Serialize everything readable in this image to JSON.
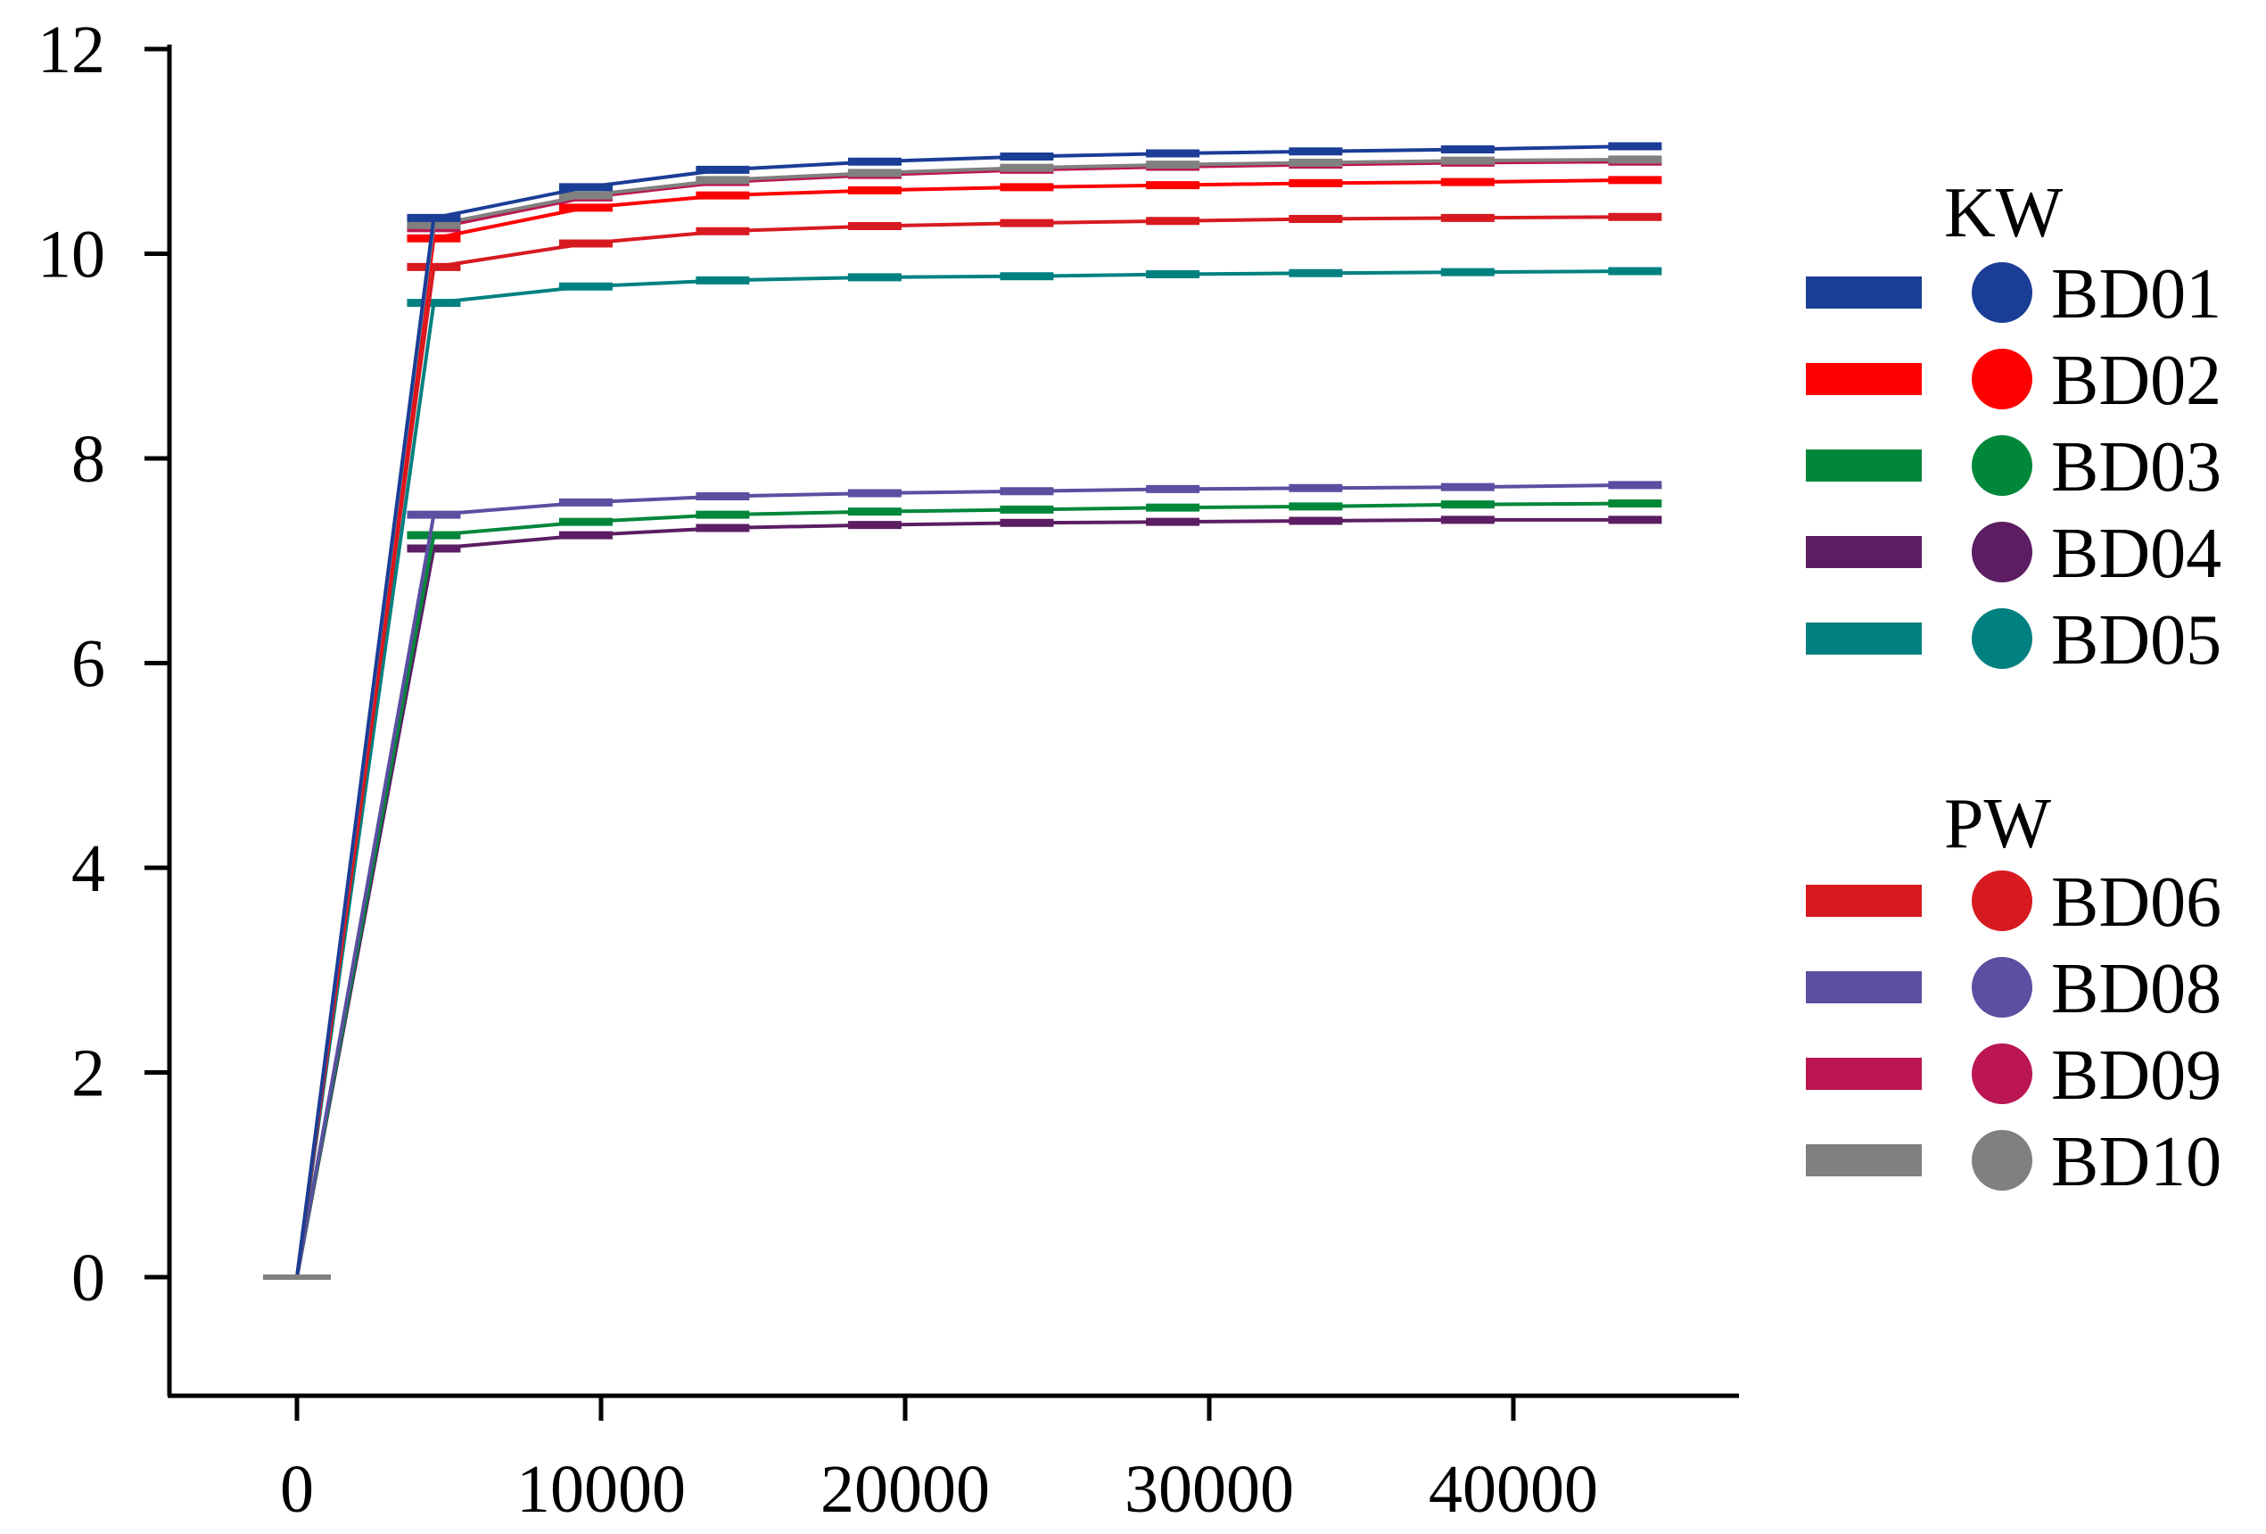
{
  "chart_data": {
    "type": "line",
    "title": "",
    "xlabel": "",
    "ylabel": "",
    "xlim": [
      -2000,
      47000
    ],
    "ylim": [
      -1.1,
      12.2
    ],
    "x_ticks": [
      0,
      10000,
      20000,
      30000,
      40000
    ],
    "x_tick_labels": [
      "0",
      "10000",
      "20000",
      "30000",
      "40000"
    ],
    "y_ticks": [
      0,
      2,
      4,
      6,
      8,
      10,
      12
    ],
    "y_tick_labels": [
      "0",
      "2",
      "4",
      "6",
      "8",
      "10",
      "12"
    ],
    "grid": false,
    "legend_placement": "right",
    "legend_groups": [
      {
        "title": "KW",
        "entries": [
          {
            "label": "BD01",
            "series": "BD01"
          },
          {
            "label": "BD02",
            "series": "BD02"
          },
          {
            "label": "BD03",
            "series": "BD03"
          },
          {
            "label": "BD04",
            "series": "BD04"
          },
          {
            "label": "BD05",
            "series": "BD05"
          }
        ]
      },
      {
        "title": "PW",
        "entries": [
          {
            "label": "BD06",
            "series": "BD06"
          },
          {
            "label": "BD08",
            "series": "BD08"
          },
          {
            "label": "BD09",
            "series": "BD09"
          },
          {
            "label": "BD10",
            "series": "BD10"
          }
        ]
      }
    ],
    "x": [
      0,
      4500,
      9500,
      14000,
      19000,
      24000,
      28800,
      33500,
      38500,
      44000
    ],
    "series": [
      {
        "name": "BD01",
        "color": "#1a3d96",
        "values": [
          0,
          10.35,
          10.65,
          10.82,
          10.9,
          10.95,
          10.98,
          11.0,
          11.02,
          11.05
        ]
      },
      {
        "name": "BD02",
        "color": "#ff0000",
        "values": [
          0,
          10.15,
          10.45,
          10.57,
          10.62,
          10.65,
          10.67,
          10.69,
          10.7,
          10.72
        ]
      },
      {
        "name": "BD03",
        "color": "#00873a",
        "values": [
          0,
          7.25,
          7.38,
          7.45,
          7.48,
          7.5,
          7.52,
          7.53,
          7.55,
          7.56
        ]
      },
      {
        "name": "BD04",
        "color": "#5c1d63",
        "values": [
          0,
          7.12,
          7.25,
          7.32,
          7.35,
          7.37,
          7.38,
          7.39,
          7.4,
          7.4
        ]
      },
      {
        "name": "BD05",
        "color": "#008080",
        "values": [
          0,
          9.52,
          9.68,
          9.74,
          9.77,
          9.78,
          9.8,
          9.81,
          9.82,
          9.83
        ]
      },
      {
        "name": "BD06",
        "color": "#d71a20",
        "values": [
          0,
          9.87,
          10.1,
          10.22,
          10.27,
          10.3,
          10.32,
          10.34,
          10.35,
          10.36
        ]
      },
      {
        "name": "BD08",
        "color": "#5a4fa0",
        "values": [
          0,
          7.45,
          7.57,
          7.63,
          7.66,
          7.68,
          7.7,
          7.71,
          7.72,
          7.74
        ]
      },
      {
        "name": "BD09",
        "color": "#bb1553",
        "values": [
          0,
          10.25,
          10.55,
          10.7,
          10.77,
          10.82,
          10.85,
          10.87,
          10.89,
          10.9
        ]
      },
      {
        "name": "BD10",
        "color": "#808080",
        "values": [
          0,
          10.28,
          10.57,
          10.72,
          10.79,
          10.84,
          10.87,
          10.89,
          10.91,
          10.92
        ]
      }
    ]
  }
}
